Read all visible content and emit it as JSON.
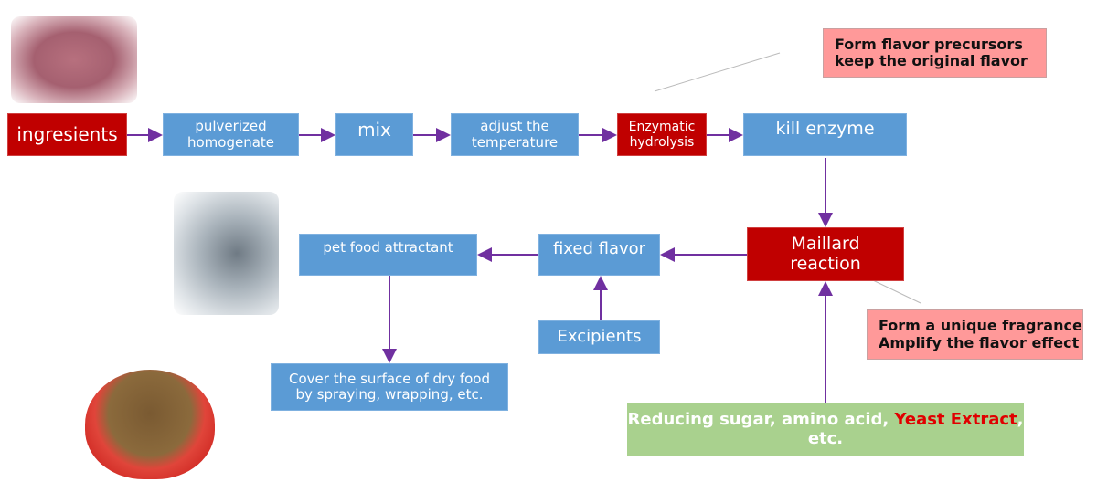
{
  "nodes": {
    "ingredients": "ingresients",
    "pulverized": "pulverized\nhomogenate",
    "mix": "mix",
    "adjust": "adjust the\ntemperature",
    "enzymatic": "Enzymatic\nhydrolysis",
    "kill_enzyme": "kill enzyme",
    "maillard": "Maillard\nreaction",
    "fixed_flavor": "fixed flavor",
    "pet_food": "pet food attractant",
    "excipients": "Excipients",
    "cover": "Cover the surface of dry food\nby spraying, wrapping, etc."
  },
  "callouts": {
    "top": "Form flavor precursors\nkeep the original flavor",
    "right": "Form a unique fragrance\nAmplify the flavor effect"
  },
  "inputs": {
    "part1": "Reducing sugar, amino acid, ",
    "highlight": "Yeast Extract",
    "part2": ",",
    "part3": "etc."
  },
  "colors": {
    "blue": "#5B9BD5",
    "red": "#C00000",
    "pink": "#FF9999",
    "green": "#A9D18E",
    "arrow": "#7030A0",
    "highlight": "#E00000"
  }
}
